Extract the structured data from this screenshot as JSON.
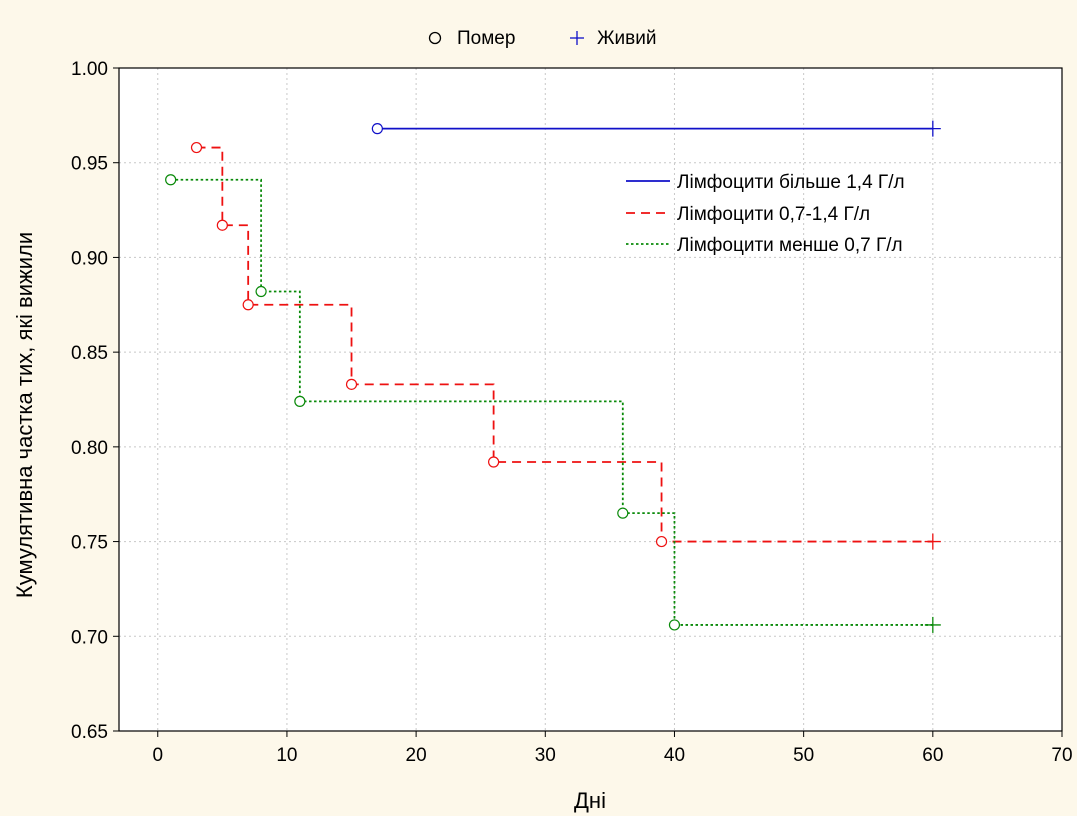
{
  "chart_data": {
    "type": "line",
    "title": "",
    "xlabel": "Дні",
    "ylabel": "Кумулятивна частка тих, які вижили",
    "xlim": [
      -3,
      70
    ],
    "ylim": [
      0.65,
      1.0
    ],
    "x_ticks": [
      0,
      10,
      20,
      30,
      40,
      50,
      60,
      70
    ],
    "x_tick_labels": [
      "0",
      "10",
      "20",
      "30",
      "40",
      "50",
      "60",
      "70"
    ],
    "y_ticks": [
      0.65,
      0.7,
      0.75,
      0.8,
      0.85,
      0.9,
      0.95,
      1.0
    ],
    "y_tick_labels": [
      "0.65",
      "0.70",
      "0.75",
      "0.80",
      "0.85",
      "0.90",
      "0.95",
      "1.00"
    ],
    "grid": true,
    "marker_legend": {
      "placement": "top-center",
      "items": [
        {
          "symbol": "circle",
          "label": "Помер"
        },
        {
          "symbol": "plus",
          "label": "Живий"
        }
      ]
    },
    "series_legend_placement": "top-right",
    "series": [
      {
        "name": "Лімфоцити більше 1,4 Г/л",
        "color": "#1010c8",
        "dash": "solid",
        "start": [
          17,
          0.968
        ],
        "steps": [],
        "end": [
          60,
          0.968
        ],
        "deaths": [
          [
            17,
            0.968
          ]
        ],
        "censored": [
          [
            60,
            0.968
          ]
        ]
      },
      {
        "name": "Лімфоцити 0,7-1,4 Г/л",
        "color": "#ee1111",
        "dash": "dashed",
        "start": [
          3,
          0.958
        ],
        "steps": [
          [
            5,
            0.917
          ],
          [
            7,
            0.875
          ],
          [
            15,
            0.833
          ],
          [
            26,
            0.792
          ],
          [
            39,
            0.75
          ]
        ],
        "end": [
          60,
          0.75
        ],
        "deaths": [
          [
            3,
            0.958
          ],
          [
            5,
            0.917
          ],
          [
            7,
            0.875
          ],
          [
            15,
            0.833
          ],
          [
            26,
            0.792
          ],
          [
            39,
            0.75
          ]
        ],
        "censored": [
          [
            60,
            0.75
          ]
        ]
      },
      {
        "name": "Лімфоцити менше 0,7 Г/л",
        "color": "#0a8a0a",
        "dash": "dotted",
        "start": [
          1,
          0.941
        ],
        "steps": [
          [
            8,
            0.882
          ],
          [
            11,
            0.824
          ],
          [
            36,
            0.765
          ],
          [
            40,
            0.706
          ]
        ],
        "end": [
          60,
          0.706
        ],
        "deaths": [
          [
            1,
            0.941
          ],
          [
            8,
            0.882
          ],
          [
            11,
            0.824
          ],
          [
            36,
            0.765
          ],
          [
            40,
            0.706
          ]
        ],
        "censored": [
          [
            60,
            0.706
          ]
        ]
      }
    ]
  }
}
